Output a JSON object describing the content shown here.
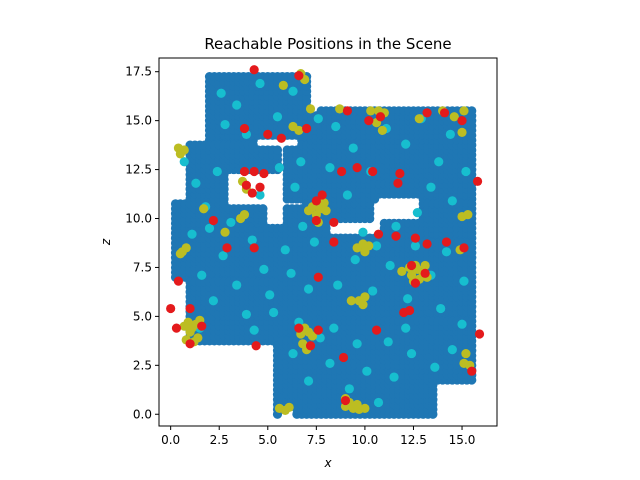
{
  "chart_data": {
    "type": "scatter",
    "title": "Reachable Positions in the Scene",
    "xlabel": "x",
    "ylabel": "z",
    "xlim": [
      -0.6,
      16.8
    ],
    "ylim": [
      -0.6,
      18.2
    ],
    "xticks": [
      0.0,
      2.5,
      5.0,
      7.5,
      10.0,
      12.5,
      15.0
    ],
    "xtick_labels": [
      "0.0",
      "2.5",
      "5.0",
      "7.5",
      "10.0",
      "12.5",
      "15.0"
    ],
    "yticks": [
      0.0,
      2.5,
      5.0,
      7.5,
      10.0,
      12.5,
      15.0,
      17.5
    ],
    "ytick_labels": [
      "0.0",
      "2.5",
      "5.0",
      "7.5",
      "10.0",
      "12.5",
      "15.0",
      "17.5"
    ],
    "grid": false,
    "legend": null,
    "series": [
      {
        "color": "#1f77b4",
        "step": 0.25,
        "regions": [
          [
            2.0,
            14.0,
            4.0,
            17.25
          ],
          [
            4.0,
            14.0,
            7.0,
            17.25
          ],
          [
            0.25,
            7.0,
            5.5,
            13.75
          ],
          [
            1.0,
            3.75,
            5.5,
            8.5
          ],
          [
            4.5,
            4.0,
            8.0,
            10.5
          ],
          [
            5.5,
            0.0,
            10.5,
            5.0
          ],
          [
            6.0,
            11.0,
            7.5,
            14.25
          ],
          [
            7.0,
            10.0,
            10.25,
            15.25
          ],
          [
            7.75,
            12.0,
            11.0,
            15.5
          ],
          [
            10.5,
            11.0,
            15.5,
            15.5
          ],
          [
            11.0,
            9.0,
            15.5,
            13.5
          ],
          [
            7.5,
            5.0,
            15.5,
            9.0
          ],
          [
            9.5,
            0.0,
            13.5,
            5.0
          ],
          [
            13.0,
            1.75,
            15.5,
            5.0
          ],
          [
            8.5,
            0.25,
            10.5,
            3.0
          ]
        ],
        "holes": [
          [
            5.0,
            9.75,
            5.75,
            10.75
          ],
          [
            3.0,
            10.75,
            5.5,
            12.25
          ],
          [
            10.75,
            10.0,
            12.75,
            11.0
          ],
          [
            0.25,
            11.0,
            0.75,
            13.75
          ],
          [
            4.5,
            13.75,
            6.5,
            14.0
          ],
          [
            5.75,
            0.0,
            6.25,
            0.25
          ]
        ]
      },
      {
        "color": "#17becf",
        "points": [
          [
            2.6,
            16.4
          ],
          [
            3.4,
            15.8
          ],
          [
            4.6,
            16.9
          ],
          [
            5.5,
            15.2
          ],
          [
            6.3,
            16.5
          ],
          [
            2.8,
            14.8
          ],
          [
            3.9,
            14.3
          ],
          [
            0.7,
            12.9
          ],
          [
            1.3,
            11.8
          ],
          [
            2.4,
            12.4
          ],
          [
            1.8,
            10.6
          ],
          [
            3.1,
            9.8
          ],
          [
            4.2,
            8.9
          ],
          [
            1.1,
            9.2
          ],
          [
            2.7,
            8.1
          ],
          [
            1.6,
            7.1
          ],
          [
            3.4,
            6.6
          ],
          [
            4.8,
            7.4
          ],
          [
            2.2,
            5.8
          ],
          [
            3.9,
            5.1
          ],
          [
            1.5,
            4.4
          ],
          [
            4.3,
            4.3
          ],
          [
            5.1,
            6.1
          ],
          [
            5.9,
            8.4
          ],
          [
            6.8,
            9.6
          ],
          [
            7.4,
            8.8
          ],
          [
            6.2,
            7.2
          ],
          [
            7.1,
            6.4
          ],
          [
            5.3,
            5.2
          ],
          [
            6.6,
            4.7
          ],
          [
            7.7,
            3.9
          ],
          [
            6.3,
            3.1
          ],
          [
            8.2,
            2.6
          ],
          [
            7.1,
            1.7
          ],
          [
            9.2,
            1.3
          ],
          [
            10.1,
            2.2
          ],
          [
            9.6,
            3.6
          ],
          [
            8.4,
            4.4
          ],
          [
            10.7,
            0.6
          ],
          [
            11.5,
            1.9
          ],
          [
            12.4,
            3.1
          ],
          [
            13.6,
            2.4
          ],
          [
            14.5,
            3.3
          ],
          [
            15.0,
            4.6
          ],
          [
            12.1,
            4.4
          ],
          [
            11.2,
            3.7
          ],
          [
            8.6,
            6.6
          ],
          [
            9.5,
            7.9
          ],
          [
            10.4,
            6.3
          ],
          [
            11.3,
            7.6
          ],
          [
            12.2,
            5.9
          ],
          [
            13.4,
            7.1
          ],
          [
            14.2,
            8.3
          ],
          [
            15.1,
            6.8
          ],
          [
            13.9,
            5.4
          ],
          [
            12.6,
            8.6
          ],
          [
            11.6,
            9.6
          ],
          [
            12.7,
            10.3
          ],
          [
            13.4,
            11.6
          ],
          [
            14.5,
            10.9
          ],
          [
            15.2,
            12.4
          ],
          [
            13.8,
            12.9
          ],
          [
            12.1,
            13.8
          ],
          [
            11.1,
            14.6
          ],
          [
            12.9,
            15.1
          ],
          [
            14.4,
            14.3
          ],
          [
            10.3,
            12.4
          ],
          [
            9.4,
            13.6
          ],
          [
            8.5,
            14.7
          ],
          [
            7.6,
            15.1
          ],
          [
            8.2,
            12.6
          ],
          [
            9.1,
            11.2
          ],
          [
            7.8,
            10.6
          ],
          [
            6.7,
            12.9
          ],
          [
            6.4,
            11.6
          ],
          [
            9.9,
            9.3
          ],
          [
            10.6,
            8.6
          ],
          [
            5.6,
            12.6
          ],
          [
            4.6,
            11.2
          ],
          [
            2.0,
            9.5
          ]
        ]
      },
      {
        "color": "#bcbd22",
        "points": [
          [
            0.4,
            13.6
          ],
          [
            0.5,
            13.3
          ],
          [
            0.7,
            13.5
          ],
          [
            0.6,
            8.3
          ],
          [
            0.8,
            8.5
          ],
          [
            0.5,
            8.2
          ],
          [
            1.7,
            10.5
          ],
          [
            2.8,
            9.3
          ],
          [
            3.6,
            10.0
          ],
          [
            3.8,
            10.2
          ],
          [
            3.9,
            11.5
          ],
          [
            3.7,
            11.9
          ],
          [
            0.9,
            4.7
          ],
          [
            1.1,
            4.4
          ],
          [
            1.3,
            4.6
          ],
          [
            1.5,
            4.8
          ],
          [
            1.0,
            4.2
          ],
          [
            0.7,
            4.5
          ],
          [
            1.4,
            3.9
          ],
          [
            1.2,
            3.7
          ],
          [
            0.8,
            3.8
          ],
          [
            5.8,
            16.8
          ],
          [
            6.7,
            17.4
          ],
          [
            6.9,
            17.1
          ],
          [
            6.3,
            14.7
          ],
          [
            6.6,
            14.5
          ],
          [
            7.2,
            15.6
          ],
          [
            7.1,
            10.4
          ],
          [
            7.3,
            10.6
          ],
          [
            7.5,
            10.2
          ],
          [
            7.7,
            10.5
          ],
          [
            7.9,
            10.8
          ],
          [
            8.0,
            10.4
          ],
          [
            7.6,
            9.8
          ],
          [
            8.7,
            15.6
          ],
          [
            10.3,
            15.5
          ],
          [
            10.7,
            15.5
          ],
          [
            11.0,
            15.4
          ],
          [
            10.6,
            14.9
          ],
          [
            10.9,
            14.5
          ],
          [
            9.6,
            8.5
          ],
          [
            9.9,
            8.7
          ],
          [
            10.2,
            8.6
          ],
          [
            10.0,
            8.3
          ],
          [
            9.3,
            5.8
          ],
          [
            9.7,
            5.8
          ],
          [
            10.0,
            6.0
          ],
          [
            9.9,
            5.6
          ],
          [
            11.9,
            7.3
          ],
          [
            12.3,
            7.5
          ],
          [
            12.7,
            7.4
          ],
          [
            13.0,
            7.2
          ],
          [
            12.8,
            6.9
          ],
          [
            12.5,
            6.8
          ],
          [
            12.4,
            7.1
          ],
          [
            12.6,
            7.6
          ],
          [
            13.1,
            7.6
          ],
          [
            13.2,
            7.0
          ],
          [
            14.9,
            8.4
          ],
          [
            15.0,
            10.1
          ],
          [
            15.3,
            10.2
          ],
          [
            15.0,
            14.4
          ],
          [
            15.1,
            15.5
          ],
          [
            14.6,
            15.2
          ],
          [
            14.0,
            15.5
          ],
          [
            12.8,
            15.1
          ],
          [
            6.7,
            4.1
          ],
          [
            6.9,
            4.4
          ],
          [
            7.1,
            4.2
          ],
          [
            7.3,
            4.0
          ],
          [
            6.8,
            3.6
          ],
          [
            7.0,
            3.3
          ],
          [
            5.6,
            0.3
          ],
          [
            5.9,
            0.2
          ],
          [
            6.1,
            0.35
          ],
          [
            9.0,
            0.8
          ],
          [
            9.2,
            0.6
          ],
          [
            9.0,
            0.4
          ],
          [
            9.4,
            0.3
          ],
          [
            9.7,
            0.25
          ],
          [
            10.0,
            0.3
          ],
          [
            9.6,
            0.5
          ],
          [
            15.1,
            2.6
          ],
          [
            15.4,
            2.5
          ],
          [
            15.2,
            3.1
          ]
        ]
      },
      {
        "color": "#e41a1c",
        "points": [
          [
            0.0,
            5.4
          ],
          [
            0.3,
            4.4
          ],
          [
            0.4,
            6.8
          ],
          [
            1.0,
            5.4
          ],
          [
            1.6,
            4.5
          ],
          [
            1.0,
            3.6
          ],
          [
            2.2,
            9.9
          ],
          [
            2.9,
            8.5
          ],
          [
            4.3,
            8.5
          ],
          [
            3.8,
            14.6
          ],
          [
            4.3,
            17.6
          ],
          [
            5.0,
            14.3
          ],
          [
            5.7,
            14.1
          ],
          [
            6.6,
            17.3
          ],
          [
            7.0,
            14.6
          ],
          [
            3.8,
            12.4
          ],
          [
            4.3,
            12.4
          ],
          [
            4.8,
            12.3
          ],
          [
            4.6,
            11.6
          ],
          [
            4.2,
            11.3
          ],
          [
            3.9,
            11.7
          ],
          [
            7.5,
            10.9
          ],
          [
            7.5,
            9.9
          ],
          [
            7.8,
            11.2
          ],
          [
            8.4,
            9.8
          ],
          [
            8.4,
            8.8
          ],
          [
            7.6,
            7.0
          ],
          [
            7.6,
            4.3
          ],
          [
            6.6,
            4.4
          ],
          [
            7.2,
            3.5
          ],
          [
            4.4,
            3.5
          ],
          [
            8.8,
            12.4
          ],
          [
            9.6,
            12.6
          ],
          [
            10.4,
            12.4
          ],
          [
            10.2,
            15.0
          ],
          [
            10.8,
            15.2
          ],
          [
            9.1,
            15.5
          ],
          [
            11.8,
            12.3
          ],
          [
            11.7,
            11.8
          ],
          [
            13.2,
            15.4
          ],
          [
            14.1,
            15.4
          ],
          [
            15.0,
            15.0
          ],
          [
            15.8,
            11.9
          ],
          [
            10.7,
            9.2
          ],
          [
            11.6,
            9.1
          ],
          [
            12.6,
            9.0
          ],
          [
            13.2,
            8.7
          ],
          [
            14.2,
            8.8
          ],
          [
            15.1,
            8.5
          ],
          [
            12.4,
            7.6
          ],
          [
            13.1,
            7.2
          ],
          [
            12.6,
            6.7
          ],
          [
            12.0,
            5.2
          ],
          [
            12.3,
            5.3
          ],
          [
            10.6,
            4.3
          ],
          [
            8.9,
            2.9
          ],
          [
            9.0,
            0.7
          ],
          [
            15.5,
            2.2
          ],
          [
            15.9,
            4.1
          ]
        ]
      }
    ]
  }
}
